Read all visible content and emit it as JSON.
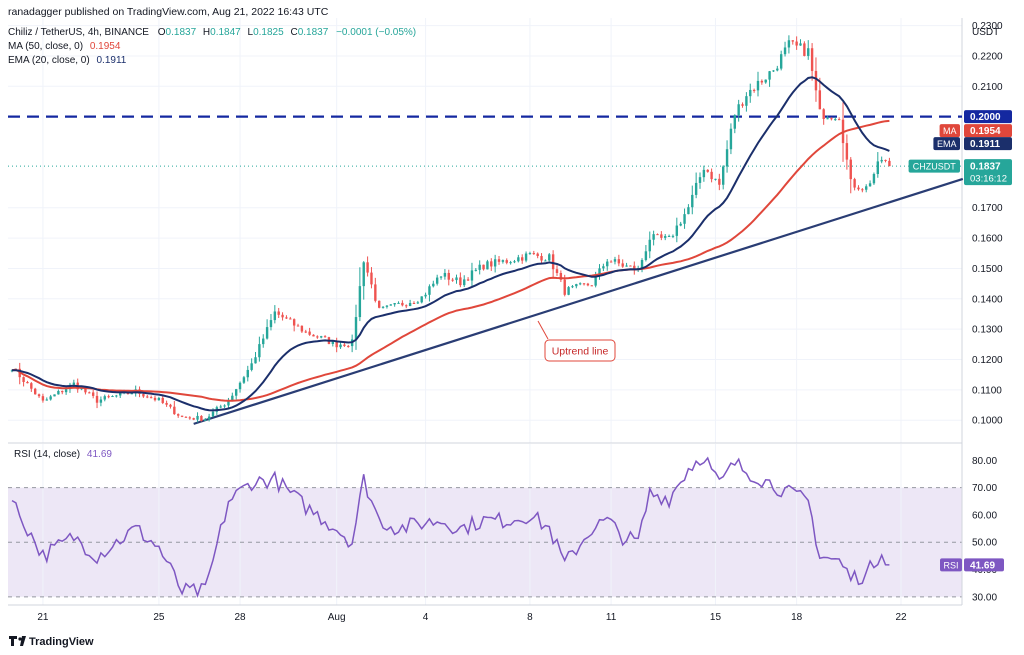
{
  "header": {
    "published": "ranadagger published on TradingView.com, Aug 21, 2022 16:43 UTC",
    "symbol": "Chiliz / TetherUS, 4h, BINANCE",
    "ohlc": {
      "o_label": "O",
      "o": "0.1837",
      "h_label": "H",
      "h": "0.1847",
      "l_label": "L",
      "l": "0.1825",
      "c_label": "C",
      "c": "0.1837",
      "change": "−0.0001 (−0.05%)"
    },
    "ma_legend": "MA (50, close, 0)",
    "ma_value": "0.1954",
    "ema_legend": "EMA (20, close, 0)",
    "ema_value": "0.1911",
    "rsi_legend": "RSI (14, close)",
    "rsi_value": "41.69"
  },
  "currency": "USDT",
  "footer_brand": "TradingView",
  "colors": {
    "up": "#26a69a",
    "down": "#ef5350",
    "ma": "#e0473b",
    "ema": "#1b2f6b",
    "trend": "#2a3d74",
    "resistance": "#1428a0",
    "rsi": "#7e57c2",
    "rsi_band": "#ede7f6"
  },
  "annotation": "Uptrend line",
  "price_badges": [
    {
      "name": "resistance-badge",
      "label": "0.2000",
      "value": 0.2,
      "color": "#1428a0"
    },
    {
      "name": "ma-badge",
      "tag": "MA",
      "label": "0.1954",
      "value": 0.1954,
      "color": "#e0473b"
    },
    {
      "name": "ema-badge",
      "tag": "EMA",
      "label": "0.1911",
      "value": 0.1911,
      "color": "#1b2f6b"
    },
    {
      "name": "last-price-badge",
      "tag": "CHZUSDT",
      "label": "0.1837",
      "timer": "03:16:12",
      "value": 0.1837,
      "color": "#26a69a"
    }
  ],
  "rsi_badge": {
    "tag": "RSI",
    "label": "41.69",
    "value": 41.69
  },
  "chart_data": {
    "type": "candlestick",
    "price_axis": {
      "range": [
        0.0925,
        0.2325
      ],
      "ticks": [
        0.1,
        0.11,
        0.12,
        0.13,
        0.14,
        0.15,
        0.16,
        0.17,
        0.21,
        0.22,
        0.23
      ],
      "tick_labels": [
        "0.1000",
        "0.1100",
        "0.1200",
        "0.1300",
        "0.1400",
        "0.1500",
        "0.1600",
        "0.1700",
        "0.2100",
        "0.2200",
        "0.2300"
      ]
    },
    "rsi_axis": {
      "range": [
        27,
        86
      ],
      "ticks": [
        30,
        40,
        50,
        60,
        70,
        80
      ],
      "tick_labels": [
        "30.00",
        "40.00",
        "50.00",
        "60.00",
        "70.00",
        "80.00"
      ],
      "overbought": 70,
      "oversold": 30
    },
    "x_axis": {
      "range": [
        0,
        230
      ],
      "ticks": [
        {
          "i": 8,
          "label": "21"
        },
        {
          "i": 38,
          "label": "25"
        },
        {
          "i": 59,
          "label": "28"
        },
        {
          "i": 84,
          "label": "Aug"
        },
        {
          "i": 107,
          "label": "4"
        },
        {
          "i": 134,
          "label": "8"
        },
        {
          "i": 155,
          "label": "11"
        },
        {
          "i": 182,
          "label": "15"
        },
        {
          "i": 203,
          "label": "18"
        },
        {
          "i": 230,
          "label": "22"
        }
      ]
    },
    "resistance": 0.2,
    "trend_line": [
      [
        47,
        0.0988
      ],
      [
        246,
        0.1795
      ]
    ],
    "pivots": [
      [
        0,
        0.1175
      ],
      [
        8,
        0.106
      ],
      [
        16,
        0.112
      ],
      [
        22,
        0.1065
      ],
      [
        32,
        0.1095
      ],
      [
        38,
        0.1065
      ],
      [
        44,
        0.101
      ],
      [
        50,
        0.1005
      ],
      [
        56,
        0.1065
      ],
      [
        62,
        0.1185
      ],
      [
        68,
        0.1355
      ],
      [
        76,
        0.129
      ],
      [
        84,
        0.125
      ],
      [
        88,
        0.1255
      ],
      [
        91,
        0.153
      ],
      [
        95,
        0.136
      ],
      [
        100,
        0.138
      ],
      [
        106,
        0.1405
      ],
      [
        111,
        0.148
      ],
      [
        116,
        0.1455
      ],
      [
        122,
        0.151
      ],
      [
        128,
        0.1525
      ],
      [
        134,
        0.1545
      ],
      [
        139,
        0.1535
      ],
      [
        143,
        0.1425
      ],
      [
        150,
        0.145
      ],
      [
        154,
        0.153
      ],
      [
        158,
        0.151
      ],
      [
        162,
        0.1495
      ],
      [
        165,
        0.16
      ],
      [
        170,
        0.1595
      ],
      [
        175,
        0.17
      ],
      [
        179,
        0.1835
      ],
      [
        183,
        0.1775
      ],
      [
        187,
        0.201
      ],
      [
        190,
        0.2075
      ],
      [
        197,
        0.2155
      ],
      [
        201,
        0.2235
      ],
      [
        206,
        0.2215
      ],
      [
        209,
        0.201
      ],
      [
        214,
        0.2005
      ],
      [
        217,
        0.178
      ],
      [
        221,
        0.1765
      ],
      [
        225,
        0.186
      ],
      [
        227,
        0.1837
      ]
    ],
    "rsi_pivots": [
      [
        0,
        65
      ],
      [
        8,
        45
      ],
      [
        16,
        52
      ],
      [
        22,
        45
      ],
      [
        32,
        55
      ],
      [
        38,
        48
      ],
      [
        44,
        32
      ],
      [
        50,
        32
      ],
      [
        56,
        65
      ],
      [
        62,
        72
      ],
      [
        68,
        73
      ],
      [
        76,
        63
      ],
      [
        84,
        55
      ],
      [
        88,
        50
      ],
      [
        91,
        73
      ],
      [
        95,
        58
      ],
      [
        100,
        55
      ],
      [
        106,
        57
      ],
      [
        111,
        58
      ],
      [
        116,
        55
      ],
      [
        122,
        58
      ],
      [
        128,
        58
      ],
      [
        134,
        60
      ],
      [
        139,
        55
      ],
      [
        143,
        42
      ],
      [
        150,
        55
      ],
      [
        154,
        58
      ],
      [
        158,
        52
      ],
      [
        162,
        50
      ],
      [
        165,
        68
      ],
      [
        170,
        66
      ],
      [
        175,
        77
      ],
      [
        179,
        82
      ],
      [
        183,
        71
      ],
      [
        187,
        79
      ],
      [
        190,
        76
      ],
      [
        197,
        71
      ],
      [
        201,
        68
      ],
      [
        206,
        65
      ],
      [
        209,
        45
      ],
      [
        214,
        43
      ],
      [
        217,
        37
      ],
      [
        221,
        38
      ],
      [
        225,
        47
      ],
      [
        227,
        42
      ]
    ]
  }
}
